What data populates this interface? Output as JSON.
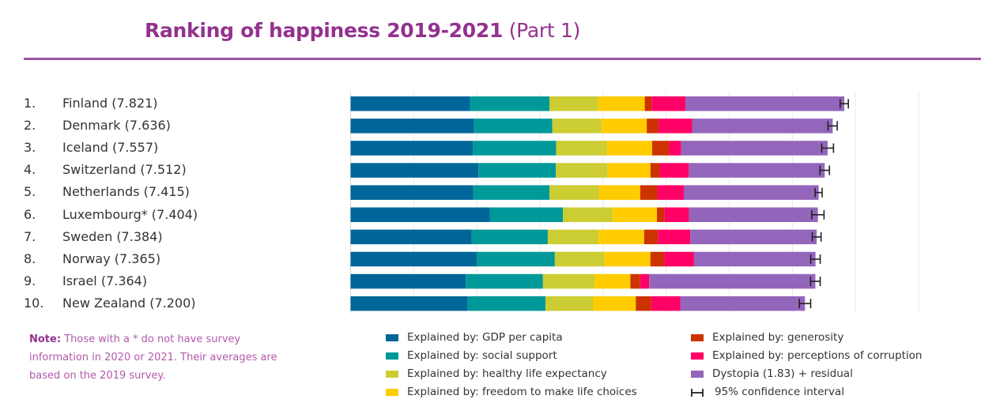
{
  "chart_data": {
    "type": "bar",
    "orientation": "horizontal",
    "stacked": true,
    "title": "Ranking of happiness 2019-2021",
    "title_suffix": "(Part 1)",
    "xlim": [
      0,
      9
    ],
    "grid": true,
    "legend_position": "bottom",
    "categories": [
      {
        "rank": "1.",
        "label": "Finland (7.821)"
      },
      {
        "rank": "2.",
        "label": "Denmark (7.636)"
      },
      {
        "rank": "3.",
        "label": "Iceland (7.557)"
      },
      {
        "rank": "4.",
        "label": "Switzerland (7.512)"
      },
      {
        "rank": "5.",
        "label": "Netherlands (7.415)"
      },
      {
        "rank": "6.",
        "label": "Luxembourg* (7.404)"
      },
      {
        "rank": "7.",
        "label": "Sweden (7.384)"
      },
      {
        "rank": "8.",
        "label": "Norway (7.365)"
      },
      {
        "rank": "9.",
        "label": "Israel (7.364)"
      },
      {
        "rank": "10.",
        "label": "New Zealand (7.200)"
      }
    ],
    "series": [
      {
        "name": "Explained by: GDP per capita",
        "color": "#006699",
        "values": [
          1.892,
          1.953,
          1.936,
          2.026,
          1.945,
          2.209,
          1.92,
          1.997,
          1.826,
          1.852
        ]
      },
      {
        "name": "Explained by: social support",
        "color": "#009999",
        "values": [
          1.258,
          1.243,
          1.32,
          1.226,
          1.206,
          1.155,
          1.204,
          1.239,
          1.221,
          1.235
        ]
      },
      {
        "name": "Explained by: healthy life expectancy",
        "color": "#cccc33",
        "values": [
          0.775,
          0.777,
          0.803,
          0.822,
          0.787,
          0.79,
          0.803,
          0.786,
          0.818,
          0.752
        ]
      },
      {
        "name": "Explained by: freedom to make life choices",
        "color": "#ffcc00",
        "values": [
          0.736,
          0.719,
          0.718,
          0.677,
          0.651,
          0.7,
          0.724,
          0.728,
          0.568,
          0.68
        ]
      },
      {
        "name": "Explained by: generosity",
        "color": "#cc3300",
        "values": [
          0.109,
          0.188,
          0.27,
          0.147,
          0.271,
          0.12,
          0.218,
          0.217,
          0.155,
          0.245
        ]
      },
      {
        "name": "Explained by: perceptions of corruption",
        "color": "#ff0066",
        "values": [
          0.534,
          0.532,
          0.191,
          0.461,
          0.419,
          0.388,
          0.512,
          0.474,
          0.143,
          0.463
        ]
      },
      {
        "name": "Dystopia (1.83) + residual",
        "color": "#9366bb",
        "values": [
          2.518,
          2.226,
          2.32,
          2.153,
          2.137,
          2.042,
          2.003,
          1.925,
          2.633,
          1.972
        ]
      }
    ],
    "totals": [
      7.821,
      7.636,
      7.557,
      7.512,
      7.415,
      7.404,
      7.384,
      7.365,
      7.364,
      7.2
    ],
    "confidence_interval": {
      "name": "95% confidence interval",
      "low": [
        7.756,
        7.563,
        7.464,
        7.437,
        7.359,
        7.307,
        7.315,
        7.29,
        7.288,
        7.11
      ],
      "high": [
        7.886,
        7.71,
        7.651,
        7.586,
        7.471,
        7.501,
        7.454,
        7.44,
        7.44,
        7.289
      ]
    }
  },
  "note": {
    "label": "Note:",
    "text": "Those with a * do not have survey information in 2020 or 2021. Their averages are based on the 2019 survey."
  }
}
